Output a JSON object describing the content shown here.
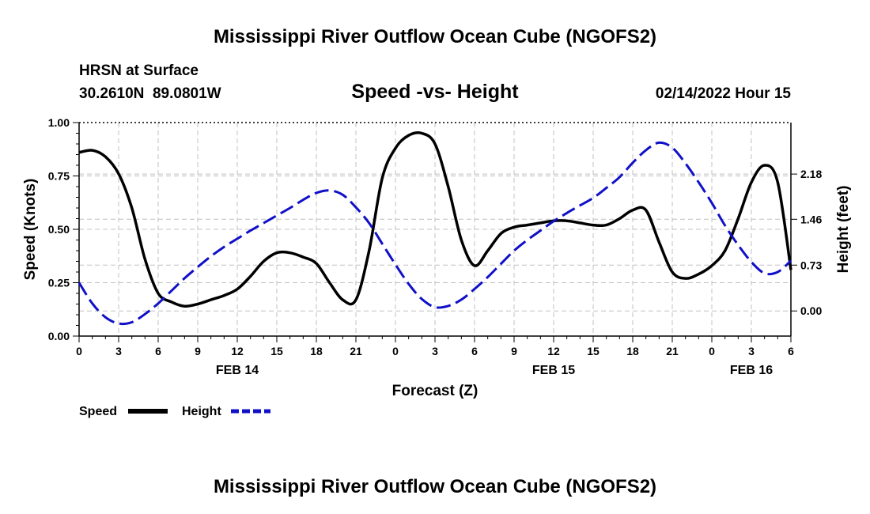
{
  "page": {
    "title_top": "Mississippi River Outflow Ocean Cube (NGOFS2)",
    "title_bottom": "Mississippi River Outflow Ocean Cube (NGOFS2)",
    "station": "HRSN at Surface",
    "coords": "30.2610N  89.0801W",
    "chart_title": "Speed -vs- Height",
    "datetime": "02/14/2022 Hour 15"
  },
  "colors": {
    "speed": "#000000",
    "height": "#1010c8"
  },
  "chart_data": {
    "type": "line",
    "title": "Speed -vs- Height",
    "xlabel": "Forecast (Z)",
    "ylabel": "Speed (Knots)",
    "y2label": "Height (feet)",
    "xlim": [
      0,
      54
    ],
    "ylim": [
      0,
      1
    ],
    "y2lim": [
      -0.4,
      3.0
    ],
    "x_ticks": [
      0,
      3,
      6,
      9,
      12,
      15,
      18,
      21,
      24,
      27,
      30,
      33,
      36,
      39,
      42,
      45,
      48,
      51,
      54
    ],
    "x_tick_labels": [
      "0",
      "3",
      "6",
      "9",
      "12",
      "15",
      "18",
      "21",
      "0",
      "3",
      "6",
      "9",
      "12",
      "15",
      "18",
      "21",
      "0",
      "3",
      "6"
    ],
    "day_labels": [
      {
        "x": 12,
        "text": "FEB 14"
      },
      {
        "x": 36,
        "text": "FEB 15"
      },
      {
        "x": 51,
        "text": "FEB 16"
      }
    ],
    "y_ticks": [
      0,
      0.25,
      0.5,
      0.75,
      1.0
    ],
    "y_tick_labels": [
      "0.00",
      "0.25",
      "0.50",
      "0.75",
      "1.00"
    ],
    "y2_ticks": [
      0,
      0.73,
      1.46,
      2.18
    ],
    "y2_tick_labels": [
      "0.00",
      "0.73",
      "1.46",
      "2.18"
    ],
    "series": [
      {
        "name": "Speed",
        "axis": "left",
        "x": [
          0,
          1,
          2,
          3,
          4,
          5,
          6,
          7,
          8,
          9,
          10,
          11,
          12,
          13,
          14,
          15,
          16,
          17,
          18,
          19,
          20,
          21,
          22,
          23,
          24,
          25,
          26,
          27,
          28,
          29,
          30,
          31,
          32,
          33,
          34,
          35,
          36,
          37,
          38,
          39,
          40,
          41,
          42,
          43,
          44,
          45,
          46,
          47,
          48,
          49,
          50,
          51,
          52,
          53,
          54
        ],
        "values": [
          0.86,
          0.87,
          0.84,
          0.76,
          0.6,
          0.36,
          0.2,
          0.16,
          0.14,
          0.15,
          0.17,
          0.19,
          0.22,
          0.28,
          0.35,
          0.39,
          0.39,
          0.37,
          0.34,
          0.25,
          0.17,
          0.17,
          0.4,
          0.74,
          0.88,
          0.94,
          0.95,
          0.9,
          0.7,
          0.45,
          0.33,
          0.4,
          0.48,
          0.51,
          0.52,
          0.53,
          0.54,
          0.54,
          0.53,
          0.52,
          0.52,
          0.55,
          0.59,
          0.59,
          0.44,
          0.3,
          0.27,
          0.29,
          0.33,
          0.4,
          0.55,
          0.72,
          0.8,
          0.72,
          0.31
        ]
      },
      {
        "name": "Height",
        "axis": "right",
        "x": [
          0,
          1,
          2,
          3,
          4,
          5,
          6,
          7,
          8,
          9,
          10,
          11,
          12,
          13,
          14,
          15,
          16,
          17,
          18,
          19,
          20,
          21,
          22,
          23,
          24,
          25,
          26,
          27,
          28,
          29,
          30,
          31,
          32,
          33,
          34,
          35,
          36,
          37,
          38,
          39,
          40,
          41,
          42,
          43,
          44,
          45,
          46,
          47,
          48,
          49,
          50,
          51,
          52,
          53,
          54
        ],
        "values": [
          0.45,
          0.12,
          -0.1,
          -0.2,
          -0.18,
          -0.05,
          0.12,
          0.32,
          0.52,
          0.7,
          0.87,
          1.02,
          1.15,
          1.28,
          1.4,
          1.52,
          1.64,
          1.77,
          1.88,
          1.92,
          1.85,
          1.65,
          1.4,
          1.07,
          0.74,
          0.43,
          0.19,
          0.06,
          0.08,
          0.18,
          0.35,
          0.54,
          0.75,
          0.96,
          1.13,
          1.28,
          1.43,
          1.56,
          1.68,
          1.8,
          1.96,
          2.13,
          2.36,
          2.56,
          2.68,
          2.6,
          2.35,
          2.05,
          1.72,
          1.36,
          1.05,
          0.78,
          0.6,
          0.62,
          0.8
        ]
      }
    ],
    "legend": [
      {
        "name": "Speed",
        "style": "solid"
      },
      {
        "name": "Height",
        "style": "dashed"
      }
    ]
  }
}
